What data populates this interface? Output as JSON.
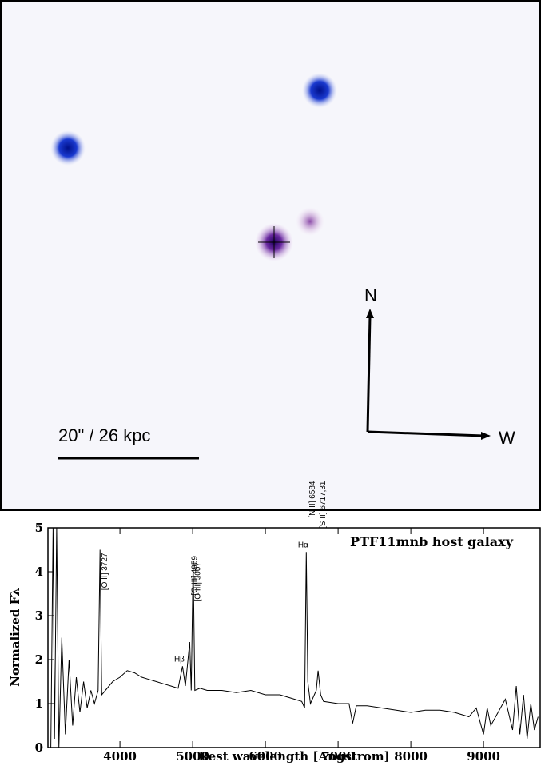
{
  "image_panel": {
    "north_label": "N",
    "west_label": "W",
    "scale_label": "20\" / 26 kpc"
  },
  "chart_data": {
    "type": "line",
    "title": "PTF11mnb host galaxy",
    "x_label": "Rest wavelength [Angstrom]",
    "y_label": "Normalized Fλ",
    "xlim": [
      3010,
      9790
    ],
    "ylim": [
      0,
      5
    ],
    "xticks": [
      4000,
      5000,
      6000,
      7000,
      8000,
      9000
    ],
    "yticks": [
      0,
      1,
      2,
      3,
      4,
      5
    ],
    "color": "#000000",
    "x": [
      3050,
      3080,
      3100,
      3130,
      3160,
      3200,
      3250,
      3300,
      3350,
      3400,
      3450,
      3500,
      3550,
      3600,
      3650,
      3700,
      3727,
      3750,
      3800,
      3900,
      4000,
      4100,
      4200,
      4300,
      4400,
      4500,
      4600,
      4700,
      4800,
      4861,
      4900,
      4959,
      4980,
      5007,
      5030,
      5100,
      5200,
      5400,
      5600,
      5800,
      6000,
      6200,
      6400,
      6500,
      6540,
      6563,
      6584,
      6620,
      6700,
      6725,
      6760,
      6800,
      7000,
      7150,
      7200,
      7250,
      7400,
      7600,
      7800,
      8000,
      8200,
      8400,
      8600,
      8800,
      8900,
      9000,
      9050,
      9100,
      9200,
      9300,
      9400,
      9450,
      9500,
      9550,
      9600,
      9650,
      9700,
      9750
    ],
    "values": [
      0,
      5,
      0.2,
      5,
      0,
      2.5,
      0.3,
      2,
      0.5,
      1.6,
      0.8,
      1.5,
      0.9,
      1.3,
      1.0,
      1.3,
      4.5,
      1.2,
      1.3,
      1.5,
      1.6,
      1.75,
      1.7,
      1.6,
      1.55,
      1.5,
      1.45,
      1.4,
      1.35,
      1.85,
      1.4,
      2.4,
      1.3,
      4.25,
      1.3,
      1.35,
      1.3,
      1.3,
      1.25,
      1.3,
      1.2,
      1.2,
      1.1,
      1.05,
      0.9,
      4.45,
      1.5,
      1.0,
      1.3,
      1.75,
      1.2,
      1.05,
      1.0,
      1.0,
      0.55,
      0.95,
      0.95,
      0.9,
      0.85,
      0.8,
      0.85,
      0.85,
      0.8,
      0.7,
      0.9,
      0.3,
      0.9,
      0.5,
      0.8,
      1.1,
      0.4,
      1.4,
      0.3,
      1.2,
      0.2,
      1.0,
      0.4,
      0.7
    ],
    "annotations": [
      {
        "text": "[O II] 3727",
        "x": 3727
      },
      {
        "text": "Hβ",
        "x": 4861
      },
      {
        "text": "[O III] 4959",
        "x": 4959
      },
      {
        "text": "[O III] 5007",
        "x": 5007
      },
      {
        "text": "Hα",
        "x": 6563
      },
      {
        "text": "[N II] 6584",
        "x": 6584
      },
      {
        "text": "[S II] 6717,31",
        "x": 6725
      }
    ]
  }
}
